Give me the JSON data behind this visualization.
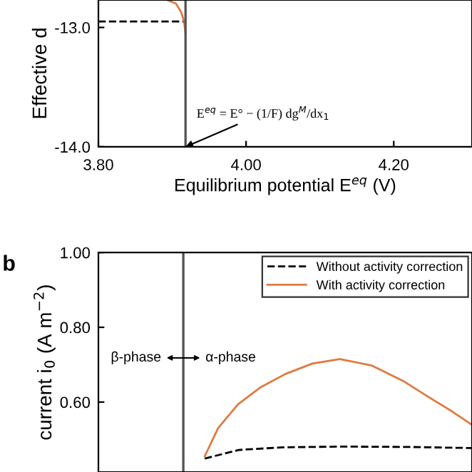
{
  "chart_data": [
    {
      "type": "line",
      "ylabel": "Effective d",
      "xlabel": "Equilibrium potential E$^{eq}$ (V)",
      "xlim": [
        3.8,
        4.306
      ],
      "ylim": [
        -14.0,
        -12.77
      ],
      "xticks": [
        {
          "value": 3.8,
          "label": "3.80"
        },
        {
          "value": 4.0,
          "label": "4.00"
        },
        {
          "value": 4.2,
          "label": "4.20"
        }
      ],
      "yticks": [
        {
          "value": -13.0,
          "label": "-13.0"
        },
        {
          "value": -14.0,
          "label": "-14.0"
        }
      ],
      "grid": false,
      "legend": false,
      "series": [
        {
          "color": "#000000",
          "line_style": "dashed",
          "x": [
            3.8,
            3.918
          ],
          "values": [
            -12.95,
            -12.95
          ]
        },
        {
          "color": "#e07a3f",
          "line_style": "solid",
          "x": [
            3.918,
            3.916,
            3.912,
            3.905,
            3.893
          ],
          "values": [
            -13.05,
            -12.95,
            -12.87,
            -12.8,
            -12.77
          ]
        }
      ],
      "ref_lines": [
        {
          "axis": "x",
          "value": 3.918,
          "color": "#555555",
          "line_style": "solid"
        }
      ],
      "annotations": [
        {
          "text": "E$^{eq}$ = E° − (1/F) dg$^{M}$/dx$_{1}$",
          "x": 3.918,
          "y": -14.0
        }
      ]
    },
    {
      "type": "line",
      "ylabel": "current i$_{0}$ (A m$^{−2}$)",
      "xlim": [
        3.8,
        4.306
      ],
      "ylim": [
        0.413,
        1.0
      ],
      "yticks": [
        {
          "value": 1.0,
          "label": "1.00"
        },
        {
          "value": 0.8,
          "label": "0.80"
        },
        {
          "value": 0.6,
          "label": "0.60"
        }
      ],
      "tick_labels": "y",
      "grid": false,
      "legend": "top right",
      "series": [
        {
          "name": "Without activity correction",
          "color": "#000000",
          "line_style": "dashed",
          "x": [
            3.944,
            3.99,
            4.05,
            4.13,
            4.22,
            4.306
          ],
          "values": [
            0.449,
            0.472,
            0.479,
            0.481,
            0.48,
            0.477
          ]
        },
        {
          "name": "With activity correction",
          "color": "#e07a3f",
          "line_style": "solid",
          "x": [
            3.944,
            3.962,
            3.989,
            4.02,
            4.053,
            4.09,
            4.127,
            4.17,
            4.214,
            4.25,
            4.279,
            4.306
          ],
          "values": [
            0.455,
            0.53,
            0.594,
            0.64,
            0.675,
            0.703,
            0.715,
            0.698,
            0.655,
            0.61,
            0.575,
            0.539
          ]
        }
      ],
      "ref_lines": [
        {
          "axis": "x",
          "value": 3.915,
          "color": "#555555",
          "line_style": "solid"
        }
      ],
      "annotations": [
        "b",
        "β-phase",
        "α-phase"
      ]
    }
  ]
}
